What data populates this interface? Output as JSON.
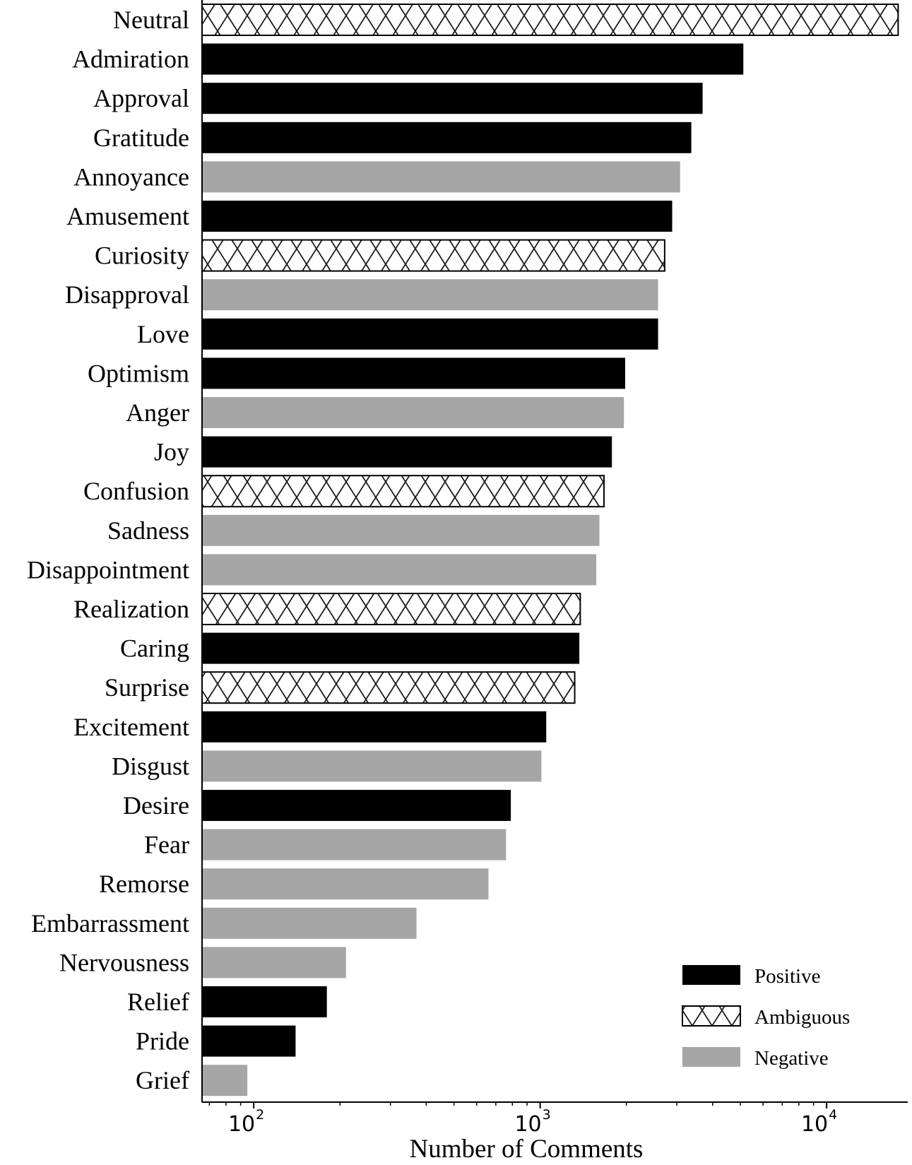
{
  "chart_data": {
    "type": "bar",
    "orientation": "horizontal",
    "x_scale": "log",
    "xlabel": "Number of Comments",
    "ylabel": "",
    "title": "",
    "xlim": [
      66,
      19200
    ],
    "x_ticks": [
      {
        "value": 100,
        "base": "10",
        "exp": "2"
      },
      {
        "value": 1000,
        "base": "10",
        "exp": "3"
      },
      {
        "value": 10000,
        "base": "10",
        "exp": "4"
      }
    ],
    "legend_position": "bottom-right",
    "categories": [
      "Neutral",
      "Admiration",
      "Approval",
      "Gratitude",
      "Annoyance",
      "Amusement",
      "Curiosity",
      "Disapproval",
      "Love",
      "Optimism",
      "Anger",
      "Joy",
      "Confusion",
      "Sadness",
      "Disappointment",
      "Realization",
      "Caring",
      "Surprise",
      "Excitement",
      "Disgust",
      "Desire",
      "Fear",
      "Remorse",
      "Embarrassment",
      "Nervousness",
      "Relief",
      "Pride",
      "Grief"
    ],
    "values": [
      17770,
      5120,
      3690,
      3370,
      3080,
      2890,
      2720,
      2580,
      2580,
      1980,
      1960,
      1780,
      1670,
      1610,
      1570,
      1380,
      1370,
      1320,
      1050,
      1010,
      790,
      760,
      660,
      370,
      210,
      180,
      140,
      95
    ],
    "sentiment": [
      "Ambiguous",
      "Positive",
      "Positive",
      "Positive",
      "Negative",
      "Positive",
      "Ambiguous",
      "Negative",
      "Positive",
      "Positive",
      "Negative",
      "Positive",
      "Ambiguous",
      "Negative",
      "Negative",
      "Ambiguous",
      "Positive",
      "Ambiguous",
      "Positive",
      "Negative",
      "Positive",
      "Negative",
      "Negative",
      "Negative",
      "Negative",
      "Positive",
      "Positive",
      "Negative"
    ],
    "legend": [
      {
        "name": "Positive",
        "style": "solid",
        "color": "#000000"
      },
      {
        "name": "Ambiguous",
        "style": "crosshatch",
        "color": "#000000"
      },
      {
        "name": "Negative",
        "style": "solid",
        "color": "#a6a6a6"
      }
    ]
  }
}
